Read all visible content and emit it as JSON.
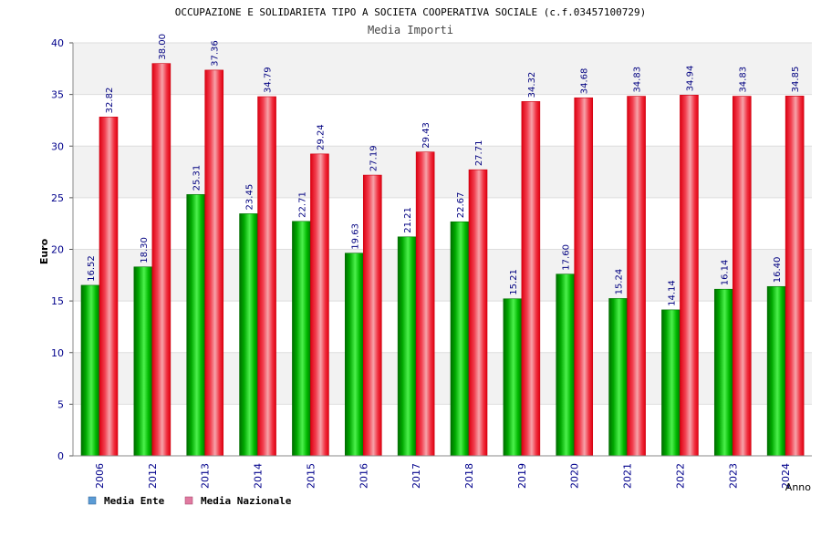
{
  "chart_data": {
    "type": "bar",
    "title": "OCCUPAZIONE E SOLIDARIETA TIPO A SOCIETA COOPERATIVA SOCIALE (c.f.03457100729)",
    "subtitle": "Media Importi",
    "xlabel": "Anno",
    "ylabel": "Euro",
    "ylim": [
      0,
      40
    ],
    "yticks": [
      "0",
      "5",
      "10",
      "15",
      "20",
      "25",
      "30",
      "35",
      "40"
    ],
    "grid": true,
    "legend_position": "bottom-left",
    "categories": [
      "2006",
      "2012",
      "2013",
      "2014",
      "2015",
      "2016",
      "2017",
      "2018",
      "2019",
      "2020",
      "2021",
      "2022",
      "2023",
      "2024"
    ],
    "series": [
      {
        "name": "Media Ente",
        "color": "#00aa00",
        "legend_color": "#5b9bd5",
        "values": [
          16.52,
          18.3,
          25.31,
          23.45,
          22.71,
          19.63,
          21.21,
          22.67,
          15.21,
          17.6,
          15.24,
          14.14,
          16.14,
          16.4
        ],
        "labels": [
          "16.52",
          "18.30",
          "25.31",
          "23.45",
          "22.71",
          "19.63",
          "21.21",
          "22.67",
          "15.21",
          "17.60",
          "15.24",
          "14.14",
          "16.14",
          "16.40"
        ]
      },
      {
        "name": "Media Nazionale",
        "color": "#ee1122",
        "legend_color": "#e07aa0",
        "values": [
          32.82,
          38.0,
          37.36,
          34.79,
          29.24,
          27.19,
          29.43,
          27.71,
          34.32,
          34.68,
          34.83,
          34.94,
          34.83,
          34.85
        ],
        "labels": [
          "32.82",
          "38.00",
          "37.36",
          "34.79",
          "29.24",
          "27.19",
          "29.43",
          "27.71",
          "34.32",
          "34.68",
          "34.83",
          "34.94",
          "34.83",
          "34.85"
        ]
      }
    ]
  }
}
